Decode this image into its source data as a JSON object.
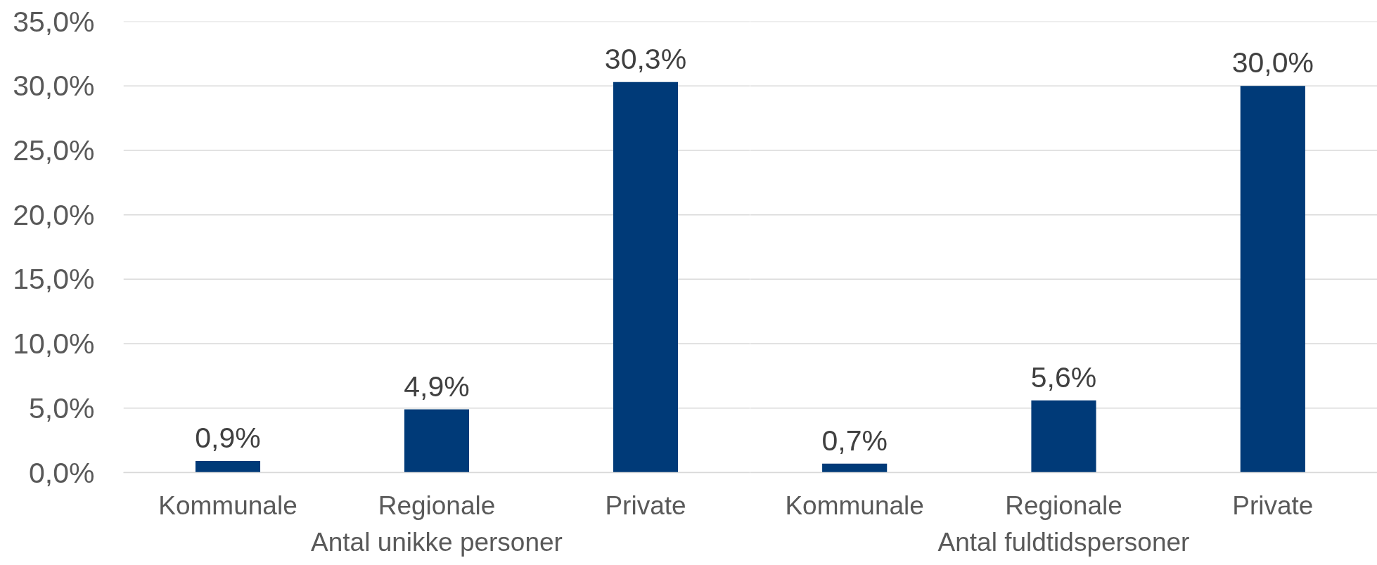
{
  "chart_data": [
    {
      "type": "bar",
      "categories": [
        "Kommunale",
        "Regionale",
        "Private"
      ],
      "xlabel": "Antal unikke personer",
      "values": [
        0.9,
        4.9,
        30.3
      ],
      "color": "#003a78",
      "value_labels": [
        "0,9%",
        "4,9%",
        "30,3%"
      ],
      "ylim": [
        0,
        35
      ],
      "yticks": [
        {
          "value": 0,
          "label": "0,0%"
        },
        {
          "value": 5,
          "label": "5,0%"
        },
        {
          "value": 10,
          "label": "10,0%"
        },
        {
          "value": 15,
          "label": "15,0%"
        },
        {
          "value": 20,
          "label": "20,0%"
        },
        {
          "value": 25,
          "label": "25,0%"
        },
        {
          "value": 30,
          "label": "30,0%"
        },
        {
          "value": 35,
          "label": "35,0%"
        }
      ],
      "grid": "y"
    },
    {
      "type": "bar",
      "categories": [
        "Kommunale",
        "Regionale",
        "Private"
      ],
      "xlabel": "Antal fuldtidspersoner",
      "values": [
        0.7,
        5.6,
        30.0
      ],
      "color": "#003a78",
      "value_labels": [
        "0,7%",
        "5,6%",
        "30,0%"
      ],
      "ylim": [
        0,
        35
      ],
      "yticks": [
        0,
        5,
        10,
        15,
        20,
        25,
        30,
        35
      ],
      "grid": "y",
      "tick_labels": "x"
    }
  ]
}
